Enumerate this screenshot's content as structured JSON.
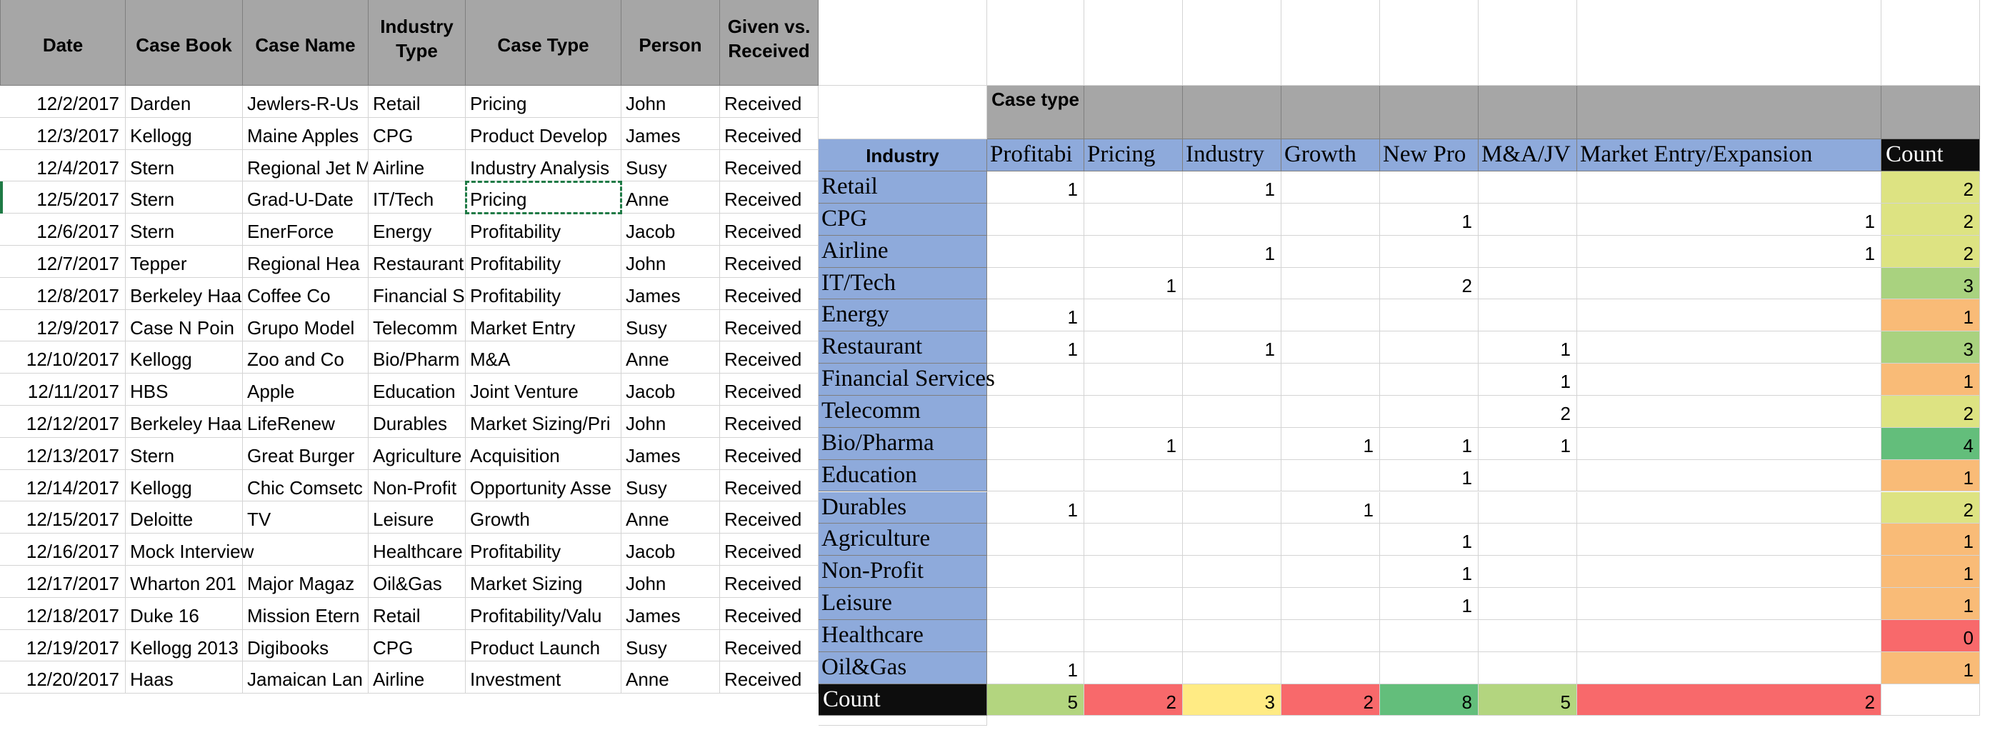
{
  "colors": {
    "gridline": "#d4d4d4",
    "left_header_fill": "#a6a6a6",
    "pivot_header_fill": "#a6a6a6",
    "industry_fill": "#8eaadb",
    "industry_header_fill": "#8eaadb",
    "count_fill": "#0d0d0d",
    "selection_border": "#1e7a45"
  },
  "case_log": {
    "headers": [
      "Date",
      "Case Book",
      "Case Name",
      "Industry Type",
      "Case Type",
      "Person",
      "Given vs. Received"
    ],
    "rows": [
      {
        "date": "12/2/2017",
        "book": "Darden",
        "name": "Jewlers-R-Us",
        "industry": "Retail",
        "type": "Pricing",
        "person": "John",
        "given": "Received"
      },
      {
        "date": "12/3/2017",
        "book": "Kellogg",
        "name": "Maine Apples",
        "industry": "CPG",
        "type": "Product Develop",
        "person": "James",
        "given": "Received"
      },
      {
        "date": "12/4/2017",
        "book": "Stern",
        "name": "Regional Jet M",
        "industry": "Airline",
        "type": "Industry Analysis",
        "person": "Susy",
        "given": "Received"
      },
      {
        "date": "12/5/2017",
        "book": "Stern",
        "name": "Grad-U-Date",
        "industry": "IT/Tech",
        "type": "Pricing",
        "person": "Anne",
        "given": "Received"
      },
      {
        "date": "12/6/2017",
        "book": "Stern",
        "name": "EnerForce",
        "industry": "Energy",
        "type": "Profitability",
        "person": "Jacob",
        "given": "Received"
      },
      {
        "date": "12/7/2017",
        "book": "Tepper",
        "name": "Regional Hea",
        "industry": "Restaurant",
        "type": "Profitability",
        "person": "John",
        "given": "Received"
      },
      {
        "date": "12/8/2017",
        "book": "Berkeley Haa",
        "name": "Coffee Co",
        "industry": "Financial S",
        "type": "Profitability",
        "person": "James",
        "given": "Received"
      },
      {
        "date": "12/9/2017",
        "book": "Case N Poin",
        "name": "Grupo Model",
        "industry": "Telecomm",
        "type": "Market Entry",
        "person": "Susy",
        "given": "Received"
      },
      {
        "date": "12/10/2017",
        "book": "Kellogg",
        "name": "Zoo and Co",
        "industry": "Bio/Pharm",
        "type": "M&A",
        "person": "Anne",
        "given": "Received"
      },
      {
        "date": "12/11/2017",
        "book": "HBS",
        "name": "Apple",
        "industry": "Education",
        "type": "Joint Venture",
        "person": "Jacob",
        "given": "Received"
      },
      {
        "date": "12/12/2017",
        "book": "Berkeley Haa",
        "name": "LifeRenew",
        "industry": "Durables",
        "type": "Market Sizing/Pri",
        "person": "John",
        "given": "Received"
      },
      {
        "date": "12/13/2017",
        "book": "Stern",
        "name": "Great Burger",
        "industry": "Agriculture",
        "type": "Acquisition",
        "person": "James",
        "given": "Received"
      },
      {
        "date": "12/14/2017",
        "book": "Kellogg",
        "name": "Chic Comsetc",
        "industry": "Non-Profit",
        "type": "Opportunity Asse",
        "person": "Susy",
        "given": "Received"
      },
      {
        "date": "12/15/2017",
        "book": "Deloitte",
        "name": "TV",
        "industry": "Leisure",
        "type": "Growth",
        "person": "Anne",
        "given": "Received"
      },
      {
        "date": "12/16/2017",
        "book": "Mock Interview",
        "name": "",
        "industry": "Healthcare",
        "type": "Profitability",
        "person": "Jacob",
        "given": "Received"
      },
      {
        "date": "12/17/2017",
        "book": "Wharton 201",
        "name": "Major Magaz",
        "industry": "Oil&Gas",
        "type": "Market Sizing",
        "person": "John",
        "given": "Received"
      },
      {
        "date": "12/18/2017",
        "book": "Duke 16",
        "name": "Mission Etern",
        "industry": "Retail",
        "type": "Profitability/Valu",
        "person": "James",
        "given": "Received"
      },
      {
        "date": "12/19/2017",
        "book": "Kellogg 2013",
        "name": "Digibooks",
        "industry": "CPG",
        "type": "Product Launch",
        "person": "Susy",
        "given": "Received"
      },
      {
        "date": "12/20/2017",
        "book": "Haas",
        "name": "Jamaican Lan",
        "industry": "Airline",
        "type": "Investment",
        "person": "Anne",
        "given": "Received"
      }
    ]
  },
  "pivot": {
    "case_type_label": "Case type",
    "industry_header": "Industry",
    "columns": [
      "Profitabi",
      "Pricing",
      "Industry",
      "Growth",
      "New Pro",
      "M&A/JV",
      "Market Entry/Expansion"
    ],
    "count_header": "Count",
    "rows": [
      {
        "industry": "Retail",
        "values": [
          "1",
          "",
          "1",
          "",
          "",
          "",
          ""
        ],
        "count": "2",
        "count_color": "#dde382"
      },
      {
        "industry": "CPG",
        "values": [
          "",
          "",
          "",
          "",
          "1",
          "",
          "1"
        ],
        "count": "2",
        "count_color": "#dde382"
      },
      {
        "industry": "Airline",
        "values": [
          "",
          "",
          "1",
          "",
          "",
          "",
          "1"
        ],
        "count": "2",
        "count_color": "#dde382"
      },
      {
        "industry": "IT/Tech",
        "values": [
          "",
          "1",
          "",
          "",
          "2",
          "",
          ""
        ],
        "count": "3",
        "count_color": "#a9d27f"
      },
      {
        "industry": "Energy",
        "values": [
          "1",
          "",
          "",
          "",
          "",
          "",
          ""
        ],
        "count": "1",
        "count_color": "#f9bb77"
      },
      {
        "industry": "Restaurant",
        "values": [
          "1",
          "",
          "1",
          "",
          "",
          "1",
          ""
        ],
        "count": "3",
        "count_color": "#a9d27f"
      },
      {
        "industry": "Financial Services",
        "values": [
          "",
          "",
          "",
          "",
          "",
          "1",
          ""
        ],
        "count": "1",
        "count_color": "#f9bb77"
      },
      {
        "industry": "Telecomm",
        "values": [
          "",
          "",
          "",
          "",
          "",
          "2",
          ""
        ],
        "count": "2",
        "count_color": "#dde382"
      },
      {
        "industry": "Bio/Pharma",
        "values": [
          "",
          "1",
          "",
          "1",
          "1",
          "1",
          ""
        ],
        "count": "4",
        "count_color": "#63be7b"
      },
      {
        "industry": "Education",
        "values": [
          "",
          "",
          "",
          "",
          "1",
          "",
          ""
        ],
        "count": "1",
        "count_color": "#f9bb77"
      },
      {
        "industry": "Durables",
        "values": [
          "1",
          "",
          "",
          "1",
          "",
          "",
          ""
        ],
        "count": "2",
        "count_color": "#dde382"
      },
      {
        "industry": "Agriculture",
        "values": [
          "",
          "",
          "",
          "",
          "1",
          "",
          ""
        ],
        "count": "1",
        "count_color": "#f9bb77"
      },
      {
        "industry": "Non-Profit",
        "values": [
          "",
          "",
          "",
          "",
          "1",
          "",
          ""
        ],
        "count": "1",
        "count_color": "#f9bb77"
      },
      {
        "industry": "Leisure",
        "values": [
          "",
          "",
          "",
          "",
          "1",
          "",
          ""
        ],
        "count": "1",
        "count_color": "#f9bb77"
      },
      {
        "industry": "Healthcare",
        "values": [
          "",
          "",
          "",
          "",
          "",
          "",
          ""
        ],
        "count": "0",
        "count_color": "#f8696b"
      },
      {
        "industry": "Oil&Gas",
        "values": [
          "1",
          "",
          "",
          "",
          "",
          "",
          ""
        ],
        "count": "1",
        "count_color": "#f9bb77"
      }
    ],
    "total_label": "Count",
    "totals": [
      {
        "value": "5",
        "color": "#b3d57f"
      },
      {
        "value": "2",
        "color": "#f8696b"
      },
      {
        "value": "3",
        "color": "#ffeb84"
      },
      {
        "value": "2",
        "color": "#f8696b"
      },
      {
        "value": "8",
        "color": "#63be7b"
      },
      {
        "value": "5",
        "color": "#b3d57f"
      },
      {
        "value": "2",
        "color": "#f8696b"
      }
    ]
  }
}
